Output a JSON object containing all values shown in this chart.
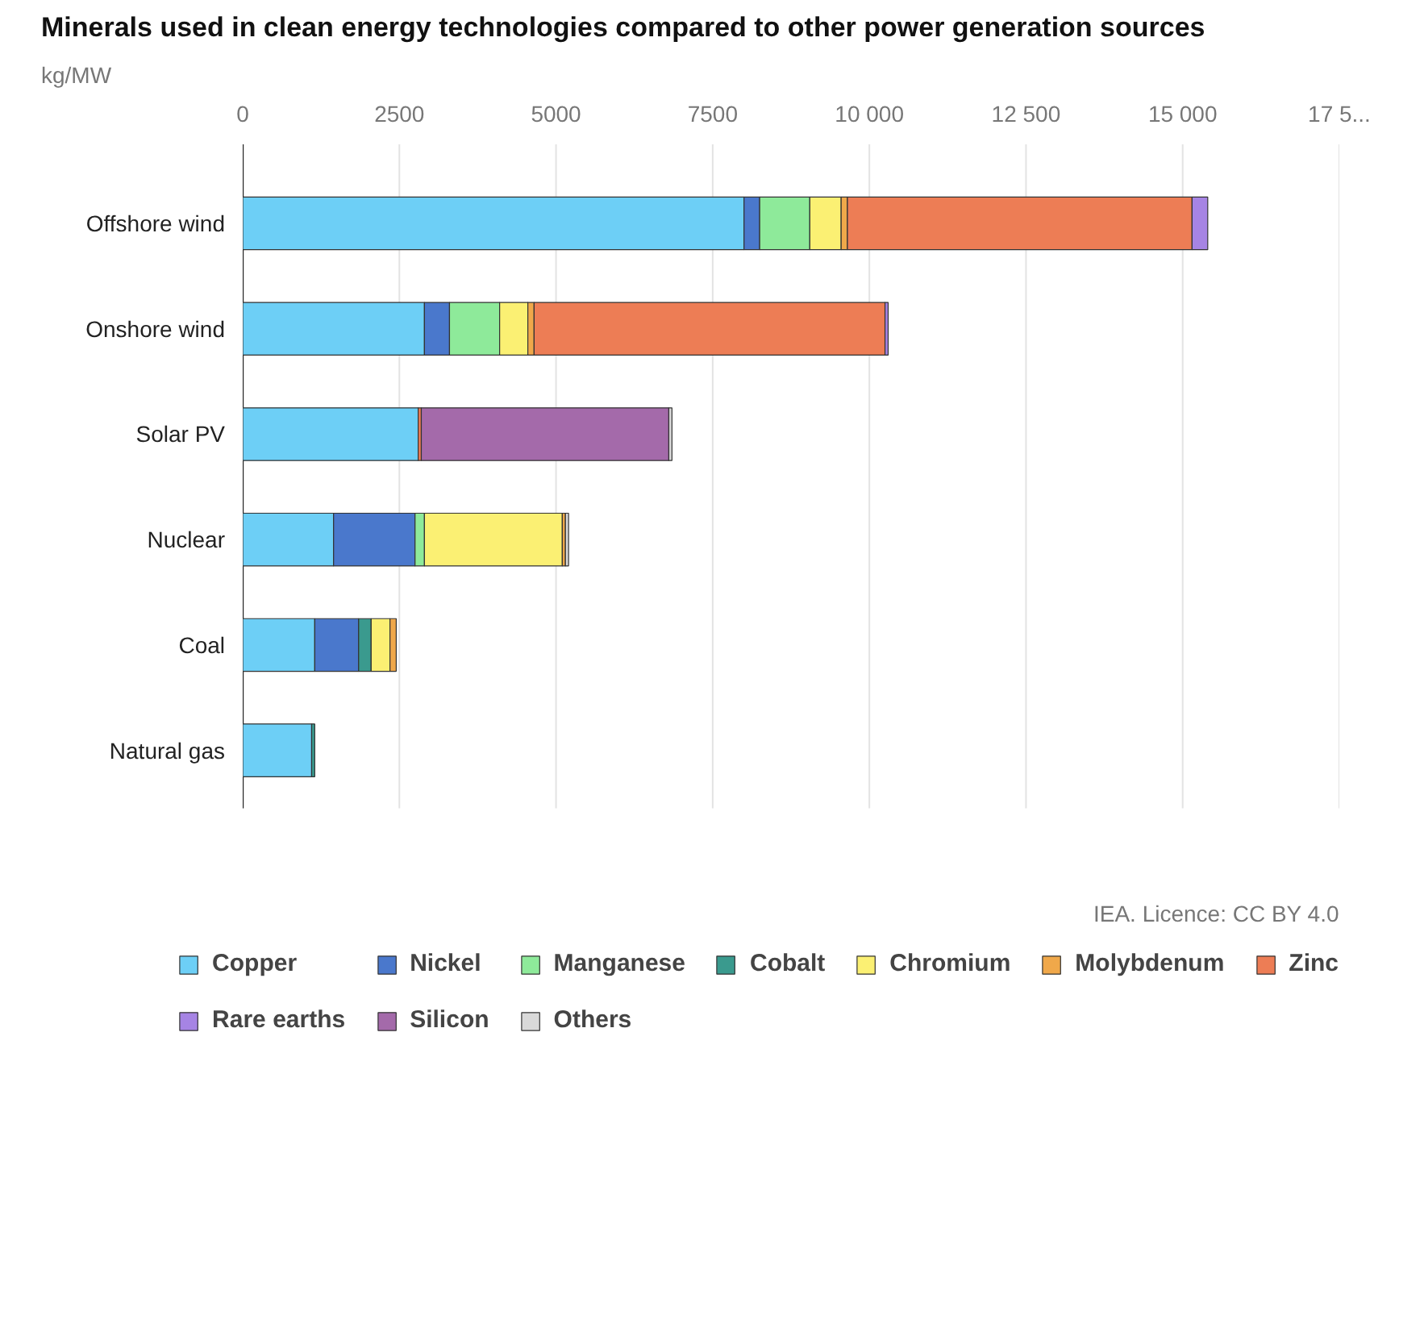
{
  "chart_data": {
    "type": "bar",
    "orientation": "horizontal",
    "stacked": true,
    "title": "Minerals used in clean energy technologies compared to other power generation sources",
    "xlabel": "kg/MW",
    "categories": [
      "Offshore wind",
      "Onshore wind",
      "Solar PV",
      "Nuclear",
      "Coal",
      "Natural gas"
    ],
    "series": [
      {
        "name": "Copper",
        "color": "#6dcff6",
        "values": [
          8000,
          2900,
          2800,
          1450,
          1150,
          1100
        ]
      },
      {
        "name": "Nickel",
        "color": "#4a78cc",
        "values": [
          250,
          400,
          null,
          1300,
          700,
          null
        ]
      },
      {
        "name": "Manganese",
        "color": "#8eea9a",
        "values": [
          800,
          800,
          null,
          150,
          null,
          null
        ]
      },
      {
        "name": "Cobalt",
        "color": "#3a9a8e",
        "values": [
          null,
          null,
          null,
          null,
          200,
          50
        ]
      },
      {
        "name": "Chromium",
        "color": "#fbf073",
        "values": [
          500,
          450,
          null,
          2200,
          300,
          null
        ]
      },
      {
        "name": "Molybdenum",
        "color": "#f0a84a",
        "values": [
          100,
          100,
          null,
          50,
          100,
          null
        ]
      },
      {
        "name": "Zinc",
        "color": "#ed7d55",
        "values": [
          5500,
          5600,
          50,
          null,
          null,
          null
        ]
      },
      {
        "name": "Rare earths",
        "color": "#a684e4",
        "values": [
          250,
          50,
          null,
          null,
          null,
          null
        ]
      },
      {
        "name": "Silicon",
        "color": "#a46aaa",
        "values": [
          null,
          null,
          3950,
          null,
          null,
          null
        ]
      },
      {
        "name": "Others",
        "color": "#d9d9d9",
        "values": [
          null,
          null,
          50,
          50,
          null,
          null
        ]
      }
    ],
    "xlim": [
      0,
      17500
    ],
    "xticks": [
      0,
      2500,
      5000,
      7500,
      {
        "value": 10000,
        "label": "10 000"
      },
      {
        "value": 12500,
        "label": "12 500"
      },
      {
        "value": 15000,
        "label": "15 000"
      },
      {
        "value": 17500,
        "label": "17 5..."
      }
    ],
    "grid": "x",
    "legend": "bottom",
    "annotations": [
      "IEA. Licence: CC BY 4.0"
    ]
  }
}
